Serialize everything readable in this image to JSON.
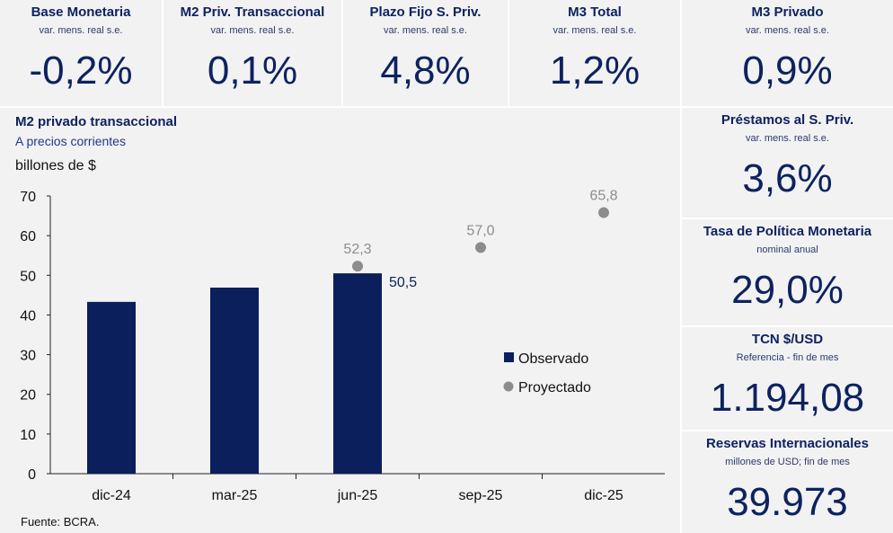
{
  "top_tiles": [
    {
      "title": "Base Monetaria",
      "subtitle": "var. mens. real s.e.",
      "value": "-0,2%"
    },
    {
      "title": "M2 Priv. Transaccional",
      "subtitle": "var. mens. real s.e.",
      "value": "0,1%"
    },
    {
      "title": "Plazo Fijo S. Priv.",
      "subtitle": "var. mens. real s.e.",
      "value": "4,8%"
    },
    {
      "title": "M3 Total",
      "subtitle": "var. mens. real s.e.",
      "value": "1,2%"
    },
    {
      "title": "M3 Privado",
      "subtitle": "var. mens. real s.e.",
      "value": "0,9%"
    }
  ],
  "side_tiles": [
    {
      "title": "Préstamos al S. Priv.",
      "subtitle": "var. mens. real s.e.",
      "value": "3,6%"
    },
    {
      "title": "Tasa de Política Monetaria",
      "subtitle": "nominal anual",
      "value": "29,0%"
    },
    {
      "title": "TCN $/USD",
      "subtitle": "Referencia - fin de mes",
      "value": "1.194,08"
    },
    {
      "title": "Reservas Internacionales",
      "subtitle": "millones de USD; fin de mes",
      "value": "39.973"
    }
  ],
  "chart_data": {
    "type": "bar",
    "title": "M2 privado transaccional",
    "subtitle": "A precios corrientes",
    "ylabel": "billones de $",
    "source": "Fuente: BCRA.",
    "ylim": [
      0,
      70
    ],
    "yticks": [
      0,
      10,
      20,
      30,
      40,
      50,
      60,
      70
    ],
    "categories": [
      "dic-24",
      "mar-25",
      "jun-25",
      "sep-25",
      "dic-25"
    ],
    "series": [
      {
        "name": "Observado",
        "type": "bar",
        "color": "#0a1f5c",
        "values": [
          43.3,
          46.9,
          50.5,
          null,
          null
        ],
        "labels": [
          null,
          null,
          "50,5",
          null,
          null
        ]
      },
      {
        "name": "Proyectado",
        "type": "scatter",
        "color": "#8c8c8c",
        "values": [
          null,
          null,
          52.3,
          57.0,
          65.8
        ],
        "labels": [
          null,
          null,
          "52,3",
          "57,0",
          "65,8"
        ]
      }
    ],
    "legend_position": "center-right",
    "grid": false
  }
}
